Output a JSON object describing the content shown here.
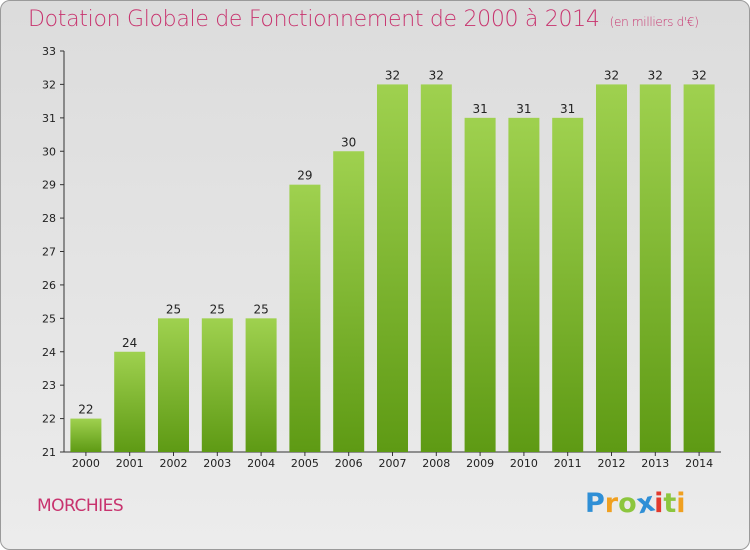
{
  "chart_data": {
    "type": "bar",
    "title": "Dotation Globale de Fonctionnement de 2000 à 2014",
    "subtitle": "(en milliers d'€)",
    "categories": [
      "2000",
      "2001",
      "2002",
      "2003",
      "2004",
      "2005",
      "2006",
      "2007",
      "2008",
      "2009",
      "2010",
      "2011",
      "2012",
      "2013",
      "2014"
    ],
    "values": [
      22,
      24,
      25,
      25,
      25,
      29,
      30,
      32,
      32,
      31,
      31,
      31,
      32,
      32,
      32
    ],
    "data_labels": [
      "22",
      "24",
      "25",
      "25",
      "25",
      "29",
      "30",
      "32",
      "32",
      "31",
      "31",
      "31",
      "32",
      "32",
      "32"
    ],
    "y_ticks": [
      "21",
      "22",
      "23",
      "24",
      "25",
      "26",
      "27",
      "28",
      "29",
      "30",
      "31",
      "32",
      "33"
    ],
    "ylim": [
      21,
      33
    ],
    "grid": false,
    "legend": "none",
    "colors": {
      "bar_top": "#9fd14f",
      "bar_bottom": "#5e9a14",
      "title": "#c8336e"
    }
  },
  "place_name": "MORCHIES",
  "logo": {
    "letters": [
      "P",
      "r",
      "o",
      "x",
      "i",
      "t",
      "i"
    ],
    "colors": [
      "#2f8fd6",
      "#f0a020",
      "#8cc63e",
      "#2f8fd6",
      "#e23a2e",
      "#8cc63e",
      "#f0a020"
    ]
  }
}
